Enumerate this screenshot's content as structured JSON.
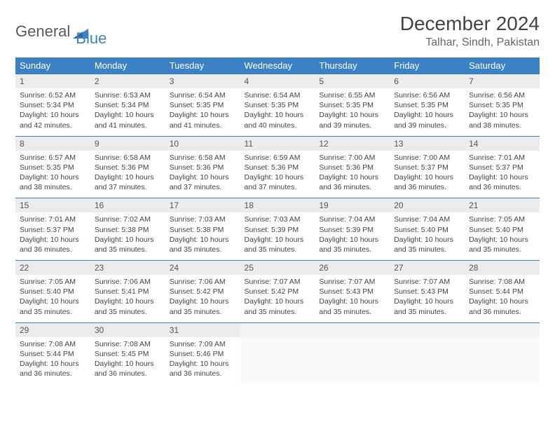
{
  "logo": {
    "part1": "General",
    "part2": "Blue"
  },
  "title": "December 2024",
  "location": "Talhar, Sindh, Pakistan",
  "colors": {
    "header_bg": "#3b82c4",
    "header_text": "#ffffff",
    "daynum_bg": "#ececec",
    "border": "#3b82c4",
    "text": "#444444"
  },
  "dow": [
    "Sunday",
    "Monday",
    "Tuesday",
    "Wednesday",
    "Thursday",
    "Friday",
    "Saturday"
  ],
  "weeks": [
    {
      "nums": [
        "1",
        "2",
        "3",
        "4",
        "5",
        "6",
        "7"
      ],
      "cells": [
        {
          "sr": "Sunrise: 6:52 AM",
          "ss": "Sunset: 5:34 PM",
          "dl": "Daylight: 10 hours and 42 minutes."
        },
        {
          "sr": "Sunrise: 6:53 AM",
          "ss": "Sunset: 5:34 PM",
          "dl": "Daylight: 10 hours and 41 minutes."
        },
        {
          "sr": "Sunrise: 6:54 AM",
          "ss": "Sunset: 5:35 PM",
          "dl": "Daylight: 10 hours and 41 minutes."
        },
        {
          "sr": "Sunrise: 6:54 AM",
          "ss": "Sunset: 5:35 PM",
          "dl": "Daylight: 10 hours and 40 minutes."
        },
        {
          "sr": "Sunrise: 6:55 AM",
          "ss": "Sunset: 5:35 PM",
          "dl": "Daylight: 10 hours and 39 minutes."
        },
        {
          "sr": "Sunrise: 6:56 AM",
          "ss": "Sunset: 5:35 PM",
          "dl": "Daylight: 10 hours and 39 minutes."
        },
        {
          "sr": "Sunrise: 6:56 AM",
          "ss": "Sunset: 5:35 PM",
          "dl": "Daylight: 10 hours and 38 minutes."
        }
      ]
    },
    {
      "nums": [
        "8",
        "9",
        "10",
        "11",
        "12",
        "13",
        "14"
      ],
      "cells": [
        {
          "sr": "Sunrise: 6:57 AM",
          "ss": "Sunset: 5:35 PM",
          "dl": "Daylight: 10 hours and 38 minutes."
        },
        {
          "sr": "Sunrise: 6:58 AM",
          "ss": "Sunset: 5:36 PM",
          "dl": "Daylight: 10 hours and 37 minutes."
        },
        {
          "sr": "Sunrise: 6:58 AM",
          "ss": "Sunset: 5:36 PM",
          "dl": "Daylight: 10 hours and 37 minutes."
        },
        {
          "sr": "Sunrise: 6:59 AM",
          "ss": "Sunset: 5:36 PM",
          "dl": "Daylight: 10 hours and 37 minutes."
        },
        {
          "sr": "Sunrise: 7:00 AM",
          "ss": "Sunset: 5:36 PM",
          "dl": "Daylight: 10 hours and 36 minutes."
        },
        {
          "sr": "Sunrise: 7:00 AM",
          "ss": "Sunset: 5:37 PM",
          "dl": "Daylight: 10 hours and 36 minutes."
        },
        {
          "sr": "Sunrise: 7:01 AM",
          "ss": "Sunset: 5:37 PM",
          "dl": "Daylight: 10 hours and 36 minutes."
        }
      ]
    },
    {
      "nums": [
        "15",
        "16",
        "17",
        "18",
        "19",
        "20",
        "21"
      ],
      "cells": [
        {
          "sr": "Sunrise: 7:01 AM",
          "ss": "Sunset: 5:37 PM",
          "dl": "Daylight: 10 hours and 36 minutes."
        },
        {
          "sr": "Sunrise: 7:02 AM",
          "ss": "Sunset: 5:38 PM",
          "dl": "Daylight: 10 hours and 35 minutes."
        },
        {
          "sr": "Sunrise: 7:03 AM",
          "ss": "Sunset: 5:38 PM",
          "dl": "Daylight: 10 hours and 35 minutes."
        },
        {
          "sr": "Sunrise: 7:03 AM",
          "ss": "Sunset: 5:39 PM",
          "dl": "Daylight: 10 hours and 35 minutes."
        },
        {
          "sr": "Sunrise: 7:04 AM",
          "ss": "Sunset: 5:39 PM",
          "dl": "Daylight: 10 hours and 35 minutes."
        },
        {
          "sr": "Sunrise: 7:04 AM",
          "ss": "Sunset: 5:40 PM",
          "dl": "Daylight: 10 hours and 35 minutes."
        },
        {
          "sr": "Sunrise: 7:05 AM",
          "ss": "Sunset: 5:40 PM",
          "dl": "Daylight: 10 hours and 35 minutes."
        }
      ]
    },
    {
      "nums": [
        "22",
        "23",
        "24",
        "25",
        "26",
        "27",
        "28"
      ],
      "cells": [
        {
          "sr": "Sunrise: 7:05 AM",
          "ss": "Sunset: 5:40 PM",
          "dl": "Daylight: 10 hours and 35 minutes."
        },
        {
          "sr": "Sunrise: 7:06 AM",
          "ss": "Sunset: 5:41 PM",
          "dl": "Daylight: 10 hours and 35 minutes."
        },
        {
          "sr": "Sunrise: 7:06 AM",
          "ss": "Sunset: 5:42 PM",
          "dl": "Daylight: 10 hours and 35 minutes."
        },
        {
          "sr": "Sunrise: 7:07 AM",
          "ss": "Sunset: 5:42 PM",
          "dl": "Daylight: 10 hours and 35 minutes."
        },
        {
          "sr": "Sunrise: 7:07 AM",
          "ss": "Sunset: 5:43 PM",
          "dl": "Daylight: 10 hours and 35 minutes."
        },
        {
          "sr": "Sunrise: 7:07 AM",
          "ss": "Sunset: 5:43 PM",
          "dl": "Daylight: 10 hours and 35 minutes."
        },
        {
          "sr": "Sunrise: 7:08 AM",
          "ss": "Sunset: 5:44 PM",
          "dl": "Daylight: 10 hours and 36 minutes."
        }
      ]
    },
    {
      "nums": [
        "29",
        "30",
        "31",
        "",
        "",
        "",
        ""
      ],
      "cells": [
        {
          "sr": "Sunrise: 7:08 AM",
          "ss": "Sunset: 5:44 PM",
          "dl": "Daylight: 10 hours and 36 minutes."
        },
        {
          "sr": "Sunrise: 7:08 AM",
          "ss": "Sunset: 5:45 PM",
          "dl": "Daylight: 10 hours and 36 minutes."
        },
        {
          "sr": "Sunrise: 7:09 AM",
          "ss": "Sunset: 5:46 PM",
          "dl": "Daylight: 10 hours and 36 minutes."
        },
        null,
        null,
        null,
        null
      ]
    }
  ]
}
